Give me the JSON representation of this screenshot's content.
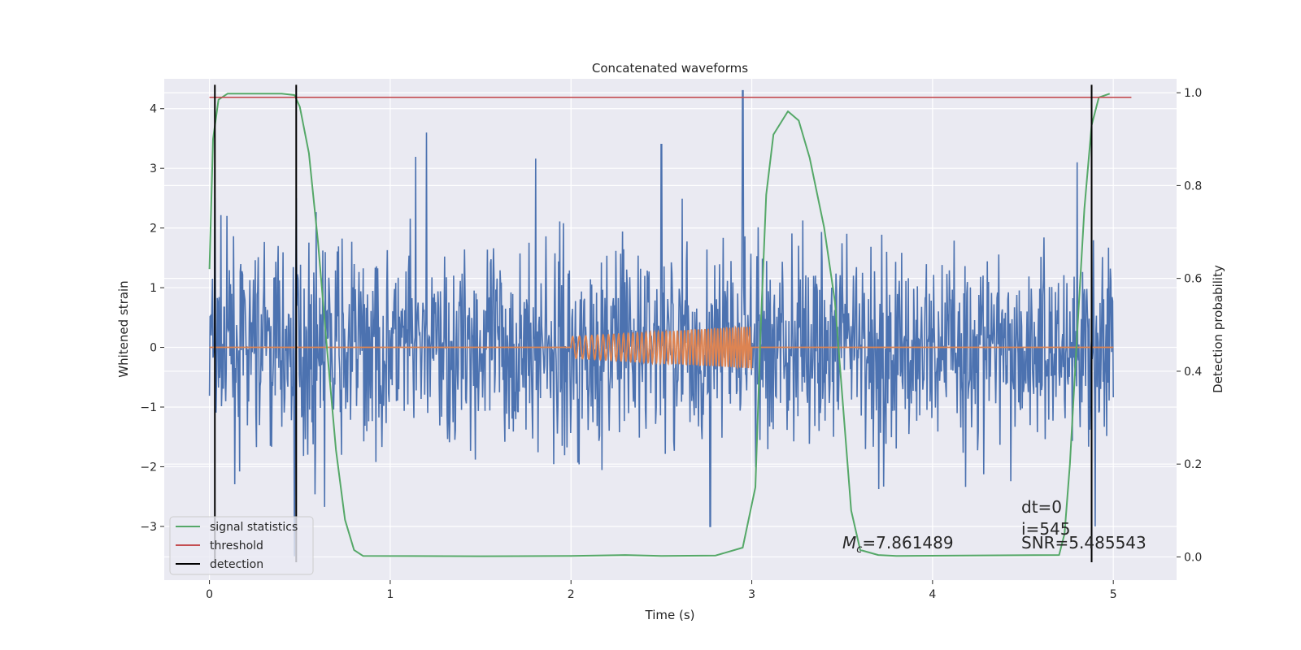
{
  "chart_data": {
    "type": "line",
    "title": "Concatenated waveforms",
    "xlabel": "Time (s)",
    "ylabel": "Whitened strain",
    "y2label": "Detection probability",
    "xlim": [
      -0.25,
      5.35
    ],
    "ylim": [
      -3.9,
      4.5
    ],
    "y2lim": [
      -0.05,
      1.03
    ],
    "x_ticks": [
      0,
      1,
      2,
      3,
      4,
      5
    ],
    "y_ticks": [
      -3,
      -2,
      -1,
      0,
      1,
      2,
      3,
      4
    ],
    "y2_ticks": [
      0.0,
      0.2,
      0.4,
      0.6,
      0.8,
      1.0
    ],
    "x_tick_labels": [
      "0",
      "1",
      "2",
      "3",
      "4",
      "5"
    ],
    "y_tick_labels": [
      "−3",
      "−2",
      "−1",
      "0",
      "1",
      "2",
      "3",
      "4"
    ],
    "y2_tick_labels": [
      "0.0",
      "0.2",
      "0.4",
      "0.6",
      "0.8",
      "1.0"
    ],
    "grid": true,
    "legend_position": "lower-left",
    "series": [
      {
        "name": "noise",
        "color": "#4c72b0",
        "axis": "left",
        "kind": "noisy strain",
        "x_range": [
          0,
          5
        ],
        "typical_range": [
          -2.0,
          2.0
        ],
        "peaks": [
          [
            0.03,
            2.5
          ],
          [
            0.48,
            2.5
          ],
          [
            1.2,
            3.6
          ],
          [
            2.5,
            3.4
          ],
          [
            2.95,
            4.3
          ],
          [
            4.8,
            3.1
          ],
          [
            0.47,
            -3.5
          ],
          [
            2.77,
            -3.0
          ],
          [
            4.9,
            -3.0
          ]
        ]
      },
      {
        "name": "injected signal",
        "color": "#dd8452",
        "axis": "left",
        "kind": "chirp",
        "x_range": [
          2.0,
          3.0
        ],
        "amplitude_range": [
          0.18,
          0.35
        ],
        "baseline": 0
      },
      {
        "name": "signal statistics",
        "color": "#55a868",
        "axis": "right",
        "points": [
          [
            0.0,
            0.62
          ],
          [
            0.02,
            0.9
          ],
          [
            0.05,
            0.985
          ],
          [
            0.1,
            0.998
          ],
          [
            0.4,
            0.998
          ],
          [
            0.47,
            0.995
          ],
          [
            0.5,
            0.97
          ],
          [
            0.55,
            0.87
          ],
          [
            0.6,
            0.68
          ],
          [
            0.65,
            0.45
          ],
          [
            0.7,
            0.23
          ],
          [
            0.75,
            0.08
          ],
          [
            0.8,
            0.015
          ],
          [
            0.85,
            0.002
          ],
          [
            1.5,
            0.0015
          ],
          [
            2.0,
            0.002
          ],
          [
            2.3,
            0.004
          ],
          [
            2.5,
            0.002
          ],
          [
            2.8,
            0.003
          ],
          [
            2.95,
            0.02
          ],
          [
            3.02,
            0.15
          ],
          [
            3.05,
            0.5
          ],
          [
            3.08,
            0.78
          ],
          [
            3.12,
            0.91
          ],
          [
            3.2,
            0.96
          ],
          [
            3.26,
            0.94
          ],
          [
            3.32,
            0.86
          ],
          [
            3.4,
            0.71
          ],
          [
            3.46,
            0.55
          ],
          [
            3.5,
            0.35
          ],
          [
            3.55,
            0.1
          ],
          [
            3.6,
            0.015
          ],
          [
            3.7,
            0.004
          ],
          [
            3.8,
            0.002
          ],
          [
            4.7,
            0.004
          ],
          [
            4.73,
            0.05
          ],
          [
            4.76,
            0.2
          ],
          [
            4.8,
            0.48
          ],
          [
            4.84,
            0.75
          ],
          [
            4.88,
            0.93
          ],
          [
            4.92,
            0.99
          ],
          [
            4.98,
            0.998
          ]
        ]
      },
      {
        "name": "threshold",
        "color": "#c44e52",
        "axis": "right",
        "value": 0.99,
        "x_range": [
          0,
          5.1
        ]
      },
      {
        "name": "detection",
        "color": "#000000",
        "axis": "left",
        "x": [
          0.03,
          0.48,
          4.88
        ],
        "y_range": [
          -3.6,
          4.4
        ]
      }
    ],
    "legend": [
      "signal statistics",
      "threshold",
      "detection"
    ],
    "annotations": {
      "mc_symbol": "M",
      "mc_subscript": "c",
      "mc_value": "=7.861489",
      "dt": "dt=0",
      "i": "i=545",
      "snr": "SNR=5.485543"
    }
  }
}
